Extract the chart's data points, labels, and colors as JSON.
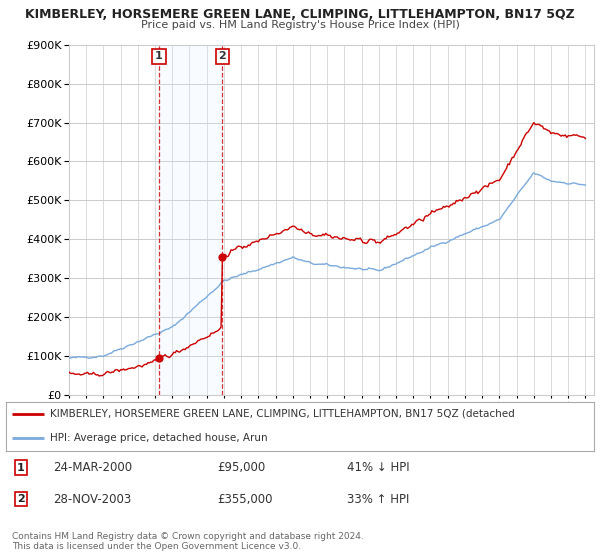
{
  "title": "KIMBERLEY, HORSEMERE GREEN LANE, CLIMPING, LITTLEHAMPTON, BN17 5QZ",
  "subtitle": "Price paid vs. HM Land Registry's House Price Index (HPI)",
  "bg_color": "#ffffff",
  "plot_bg_color": "#ffffff",
  "grid_color": "#cccccc",
  "red_line_color": "#cc0000",
  "blue_line_color": "#7aaadd",
  "shade_color": "#ddeeff",
  "t1_x": 2000.23,
  "t1_y": 95000,
  "t2_x": 2003.91,
  "t2_y": 355000,
  "legend_red": "KIMBERLEY, HORSEMERE GREEN LANE, CLIMPING, LITTLEHAMPTON, BN17 5QZ (detached",
  "legend_blue": "HPI: Average price, detached house, Arun",
  "footnote1": "Contains HM Land Registry data © Crown copyright and database right 2024.",
  "footnote2": "This data is licensed under the Open Government Licence v3.0.",
  "row1_label": "1",
  "row1_date": "24-MAR-2000",
  "row1_price": "£95,000",
  "row1_hpi": "41% ↓ HPI",
  "row2_label": "2",
  "row2_date": "28-NOV-2003",
  "row2_price": "£355,000",
  "row2_hpi": "33% ↑ HPI",
  "ylim": [
    0,
    900000
  ],
  "xlim_start": 1995.0,
  "xlim_end": 2025.5,
  "yticks": [
    0,
    100000,
    200000,
    300000,
    400000,
    500000,
    600000,
    700000,
    800000,
    900000
  ],
  "xticks": [
    1995,
    1996,
    1997,
    1998,
    1999,
    2000,
    2001,
    2002,
    2003,
    2004,
    2005,
    2006,
    2007,
    2008,
    2009,
    2010,
    2011,
    2012,
    2013,
    2014,
    2015,
    2016,
    2017,
    2018,
    2019,
    2020,
    2021,
    2022,
    2023,
    2024,
    2025
  ]
}
